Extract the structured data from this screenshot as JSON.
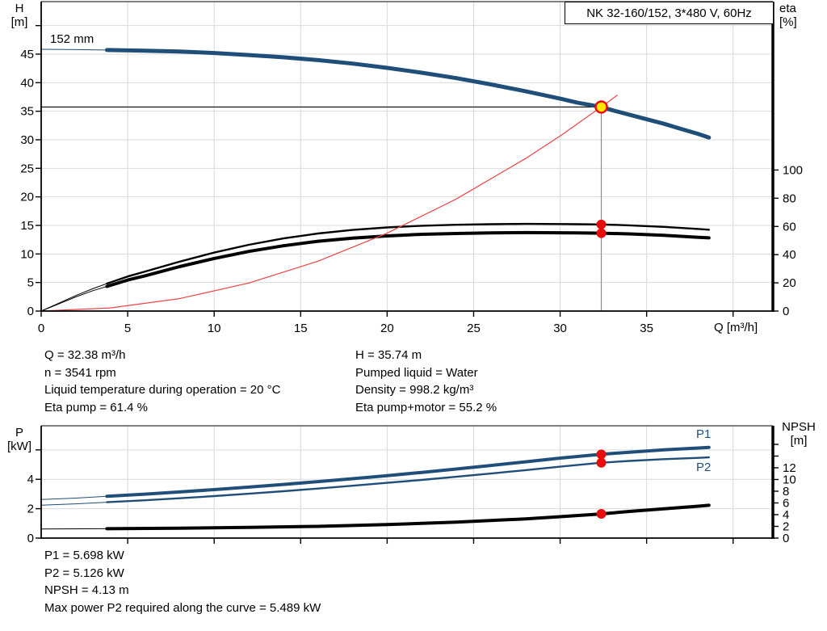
{
  "header": {
    "title": "NK 32-160/152, 3*480 V, 60Hz"
  },
  "axis_titles": {
    "h_line1": "H",
    "h_line2": "[m]",
    "eta_line1": "eta",
    "eta_line2": "[%]",
    "p_line1": "P",
    "p_line2": "[kW]",
    "npsh_line1": "NPSH",
    "npsh_line2": "[m]",
    "q": "Q [m³/h]"
  },
  "curve_labels": {
    "impeller": "152 mm",
    "p1": "P1",
    "p2": "P2"
  },
  "info_top": {
    "left": [
      "Q = 32.38 m³/h",
      "n = 3541 rpm",
      "Liquid temperature during operation = 20 °C",
      "Eta pump = 61.4 %"
    ],
    "right": [
      "H = 35.74 m",
      "Pumped liquid = Water",
      "Density = 998.2 kg/m³",
      "Eta pump+motor = 55.2 %"
    ]
  },
  "info_bottom": {
    "lines": [
      "P1 = 5.698 kW",
      "P2 = 5.126 kW",
      "NPSH = 4.13 m",
      "Max power P2 required along the curve = 5.489 kW"
    ]
  },
  "colors": {
    "curve_blue": "#1f4e79",
    "marker_red": "#e80c0c",
    "system_red": "#ee4444",
    "duty_yellow": "#ffe800",
    "grid": "#d9d9d9",
    "duty_vline_gray": "#8c8c8c",
    "axis_black": "#000000"
  },
  "chart_data": [
    {
      "id": "qh-eta-chart",
      "type": "line",
      "title": "Head and efficiency vs flow",
      "x": {
        "label": "Q [m³/h]",
        "range": [
          0,
          42.3
        ],
        "ticks": [
          {
            "v": 0,
            "label": "0"
          },
          {
            "v": 5,
            "label": "5"
          },
          {
            "v": 10,
            "label": "10"
          },
          {
            "v": 15,
            "label": "15"
          },
          {
            "v": 20,
            "label": "20"
          },
          {
            "v": 25,
            "label": "25"
          },
          {
            "v": 30,
            "label": "30"
          },
          {
            "v": 35,
            "label": "35"
          },
          {
            "v": 40,
            "label": ""
          }
        ]
      },
      "y_left": {
        "label": "H [m]",
        "range": [
          0,
          54.2
        ],
        "ticks": [
          {
            "v": 0,
            "label": "0"
          },
          {
            "v": 5,
            "label": "5"
          },
          {
            "v": 10,
            "label": "10"
          },
          {
            "v": 15,
            "label": "15"
          },
          {
            "v": 20,
            "label": "20"
          },
          {
            "v": 25,
            "label": "25"
          },
          {
            "v": 30,
            "label": "30"
          },
          {
            "v": 35,
            "label": "35"
          },
          {
            "v": 40,
            "label": "40"
          },
          {
            "v": 45,
            "label": "45"
          },
          {
            "v": 50,
            "label": ""
          }
        ]
      },
      "y_right": {
        "label": "eta [%]",
        "range": [
          0,
          219.4
        ],
        "ticks": [
          {
            "v": 0,
            "label": "0"
          },
          {
            "v": 20,
            "label": "20"
          },
          {
            "v": 40,
            "label": "40"
          },
          {
            "v": 60,
            "label": "60"
          },
          {
            "v": 80,
            "label": "80"
          },
          {
            "v": 100,
            "label": "100"
          }
        ]
      },
      "grid": true,
      "series": [
        {
          "name": "head-curve-152mm",
          "axis": "left",
          "color": "#1f4e79",
          "width": 5,
          "thin_until": 3.8,
          "points": [
            [
              0,
              45.85
            ],
            [
              2,
              45.8
            ],
            [
              3.8,
              45.72
            ],
            [
              6,
              45.6
            ],
            [
              8,
              45.45
            ],
            [
              10,
              45.2
            ],
            [
              12,
              44.85
            ],
            [
              14,
              44.45
            ],
            [
              16,
              43.95
            ],
            [
              18,
              43.35
            ],
            [
              20,
              42.6
            ],
            [
              22,
              41.75
            ],
            [
              24,
              40.8
            ],
            [
              26,
              39.7
            ],
            [
              28,
              38.5
            ],
            [
              30,
              37.2
            ],
            [
              31,
              36.5
            ],
            [
              32.38,
              35.74
            ],
            [
              33,
              35.2
            ],
            [
              34,
              34.4
            ],
            [
              35,
              33.6
            ],
            [
              36,
              32.8
            ],
            [
              37,
              31.9
            ],
            [
              38,
              31.0
            ],
            [
              38.6,
              30.4
            ]
          ]
        },
        {
          "name": "eta-pump-curve",
          "axis": "right",
          "color": "#000000",
          "width": 2.4,
          "thin_until": 3.8,
          "points": [
            [
              0,
              0
            ],
            [
              1,
              5.5
            ],
            [
              2,
              11
            ],
            [
              3,
              16
            ],
            [
              3.8,
              19.5
            ],
            [
              5,
              24.5
            ],
            [
              6,
              28
            ],
            [
              8,
              35
            ],
            [
              10,
              41.5
            ],
            [
              12,
              47
            ],
            [
              14,
              51.5
            ],
            [
              16,
              55
            ],
            [
              18,
              57.5
            ],
            [
              20,
              59.3
            ],
            [
              22,
              60.5
            ],
            [
              24,
              61.2
            ],
            [
              26,
              61.6
            ],
            [
              28,
              61.8
            ],
            [
              30,
              61.7
            ],
            [
              31,
              61.6
            ],
            [
              32.38,
              61.4
            ],
            [
              34,
              60.8
            ],
            [
              36,
              59.7
            ],
            [
              38,
              58.2
            ],
            [
              38.6,
              57.7
            ]
          ]
        },
        {
          "name": "eta-pump-motor-curve",
          "axis": "right",
          "color": "#000000",
          "width": 4,
          "thin_until": 3.8,
          "points": [
            [
              0,
              0
            ],
            [
              1,
              5
            ],
            [
              2,
              10
            ],
            [
              3,
              14.5
            ],
            [
              3.8,
              17.5
            ],
            [
              5,
              22
            ],
            [
              6,
              25
            ],
            [
              8,
              31.5
            ],
            [
              10,
              37.3
            ],
            [
              12,
              42.3
            ],
            [
              14,
              46.3
            ],
            [
              16,
              49.5
            ],
            [
              18,
              51.7
            ],
            [
              20,
              53.3
            ],
            [
              22,
              54.4
            ],
            [
              24,
              55.0
            ],
            [
              26,
              55.4
            ],
            [
              28,
              55.6
            ],
            [
              30,
              55.5
            ],
            [
              31,
              55.4
            ],
            [
              32.38,
              55.2
            ],
            [
              34,
              54.7
            ],
            [
              36,
              53.7
            ],
            [
              38,
              52.3
            ],
            [
              38.6,
              51.9
            ]
          ]
        },
        {
          "name": "system-curve",
          "axis": "left",
          "color": "#ee4444",
          "width": 1.2,
          "points": [
            [
              0,
              0
            ],
            [
              4,
              0.55
            ],
            [
              8,
              2.18
            ],
            [
              12,
              4.91
            ],
            [
              16,
              8.73
            ],
            [
              20,
              13.64
            ],
            [
              24,
              19.63
            ],
            [
              28,
              26.72
            ],
            [
              30,
              30.68
            ],
            [
              32.38,
              35.74
            ],
            [
              33.3,
              37.8
            ]
          ]
        }
      ],
      "duty_lines": {
        "h": {
          "y": 35.74,
          "from_x": 0,
          "to_x": 32.38
        },
        "v": {
          "x": 32.38,
          "from_y": 35.74,
          "to_y": 0
        }
      },
      "markers": [
        {
          "name": "duty-point-marker",
          "x": 32.38,
          "y": 35.74,
          "axis": "left",
          "style": "duty"
        },
        {
          "name": "eta-pump-point",
          "x": 32.38,
          "y": 61.4,
          "axis": "right",
          "style": "dot"
        },
        {
          "name": "eta-pump-motor-point",
          "x": 32.38,
          "y": 55.2,
          "axis": "right",
          "style": "dot"
        }
      ]
    },
    {
      "id": "power-npsh-chart",
      "type": "line",
      "title": "Power and NPSH vs flow",
      "x": {
        "label": "",
        "range": [
          0,
          42.3
        ],
        "ticks": [
          {
            "v": 5,
            "label": ""
          },
          {
            "v": 10,
            "label": ""
          },
          {
            "v": 15,
            "label": ""
          },
          {
            "v": 20,
            "label": ""
          },
          {
            "v": 25,
            "label": ""
          },
          {
            "v": 30,
            "label": ""
          },
          {
            "v": 35,
            "label": ""
          },
          {
            "v": 40,
            "label": ""
          }
        ]
      },
      "y_left": {
        "label": "P [kW]",
        "range": [
          0,
          7.64
        ],
        "ticks": [
          {
            "v": 0,
            "label": "0"
          },
          {
            "v": 2,
            "label": "2"
          },
          {
            "v": 4,
            "label": "4"
          },
          {
            "v": 6,
            "label": ""
          }
        ]
      },
      "y_right": {
        "label": "NPSH [m]",
        "range": [
          0,
          19.17
        ],
        "ticks": [
          {
            "v": 0,
            "label": "0"
          },
          {
            "v": 2,
            "label": "2"
          },
          {
            "v": 4,
            "label": "4"
          },
          {
            "v": 6,
            "label": "6"
          },
          {
            "v": 8,
            "label": "8"
          },
          {
            "v": 10,
            "label": "10"
          },
          {
            "v": 12,
            "label": "12"
          },
          {
            "v": 14,
            "label": ""
          },
          {
            "v": 16,
            "label": ""
          }
        ]
      },
      "grid": true,
      "series": [
        {
          "name": "p1-curve",
          "axis": "left",
          "color": "#1f4e79",
          "width": 4,
          "thin_until": 3.8,
          "points": [
            [
              0,
              2.62
            ],
            [
              2,
              2.72
            ],
            [
              3.8,
              2.84
            ],
            [
              6,
              2.99
            ],
            [
              8,
              3.14
            ],
            [
              10,
              3.3
            ],
            [
              12,
              3.47
            ],
            [
              14,
              3.65
            ],
            [
              16,
              3.84
            ],
            [
              18,
              4.04
            ],
            [
              20,
              4.25
            ],
            [
              22,
              4.47
            ],
            [
              24,
              4.7
            ],
            [
              26,
              4.94
            ],
            [
              28,
              5.19
            ],
            [
              30,
              5.44
            ],
            [
              32.38,
              5.698
            ],
            [
              34,
              5.84
            ],
            [
              36,
              6.0
            ],
            [
              38,
              6.13
            ],
            [
              38.6,
              6.17
            ]
          ]
        },
        {
          "name": "p2-curve",
          "axis": "left",
          "color": "#1f4e79",
          "width": 2.4,
          "thin_until": 3.8,
          "points": [
            [
              0,
              2.24
            ],
            [
              2,
              2.33
            ],
            [
              3.8,
              2.44
            ],
            [
              6,
              2.57
            ],
            [
              8,
              2.71
            ],
            [
              10,
              2.86
            ],
            [
              12,
              3.02
            ],
            [
              14,
              3.19
            ],
            [
              16,
              3.37
            ],
            [
              18,
              3.56
            ],
            [
              20,
              3.76
            ],
            [
              22,
              3.96
            ],
            [
              24,
              4.17
            ],
            [
              26,
              4.39
            ],
            [
              28,
              4.62
            ],
            [
              30,
              4.86
            ],
            [
              32.38,
              5.126
            ],
            [
              34,
              5.25
            ],
            [
              36,
              5.37
            ],
            [
              38,
              5.46
            ],
            [
              38.6,
              5.489
            ]
          ]
        },
        {
          "name": "npsh-curve",
          "axis": "right",
          "color": "#000000",
          "width": 4,
          "thin_until": 3.8,
          "points": [
            [
              0,
              1.55
            ],
            [
              3.8,
              1.6
            ],
            [
              8,
              1.7
            ],
            [
              12,
              1.83
            ],
            [
              16,
              2.0
            ],
            [
              20,
              2.3
            ],
            [
              24,
              2.72
            ],
            [
              28,
              3.28
            ],
            [
              30,
              3.65
            ],
            [
              32.38,
              4.13
            ],
            [
              34,
              4.55
            ],
            [
              36,
              5.0
            ],
            [
              38,
              5.45
            ],
            [
              38.6,
              5.6
            ]
          ]
        }
      ],
      "markers": [
        {
          "name": "p1-point",
          "x": 32.38,
          "y": 5.698,
          "axis": "left",
          "style": "dot"
        },
        {
          "name": "p2-point",
          "x": 32.38,
          "y": 5.126,
          "axis": "left",
          "style": "dot"
        },
        {
          "name": "npsh-point",
          "x": 32.38,
          "y": 4.13,
          "axis": "right",
          "style": "dot"
        }
      ]
    }
  ]
}
